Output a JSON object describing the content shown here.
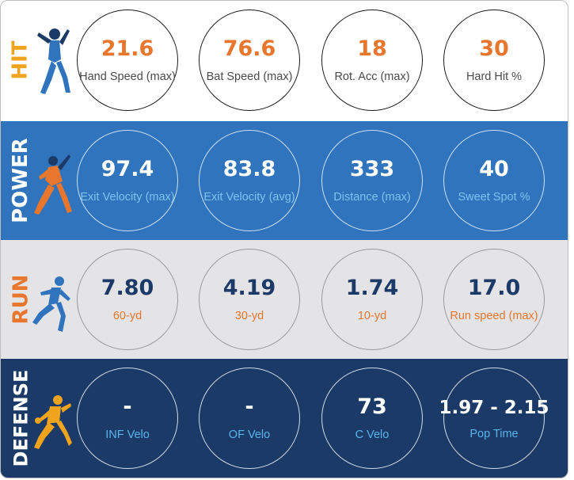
{
  "colors": {
    "orange": "#e8762d",
    "navy": "#1b3a67",
    "blue": "#2f74bd",
    "light_blue": "#5ab4ea",
    "gray": "#e4e4e6"
  },
  "sections": [
    {
      "key": "hit",
      "label": "HIT",
      "icon": "batter-icon",
      "label_color": "#f0a31c",
      "metrics": [
        {
          "value": "21.6",
          "label": "Hand Speed (max)"
        },
        {
          "value": "76.6",
          "label": "Bat Speed (max)"
        },
        {
          "value": "18",
          "label": "Rot. Acc (max)"
        },
        {
          "value": "30",
          "label": "Hard Hit %"
        }
      ]
    },
    {
      "key": "power",
      "label": "POWER",
      "icon": "power-hitter-icon",
      "label_color": "#ffffff",
      "metrics": [
        {
          "value": "97.4",
          "label": "Exit Velocity (max)"
        },
        {
          "value": "83.8",
          "label": "Exit Velocity (avg)"
        },
        {
          "value": "333",
          "label": "Distance (max)"
        },
        {
          "value": "40",
          "label": "Sweet Spot %"
        }
      ]
    },
    {
      "key": "run",
      "label": "RUN",
      "icon": "runner-icon",
      "label_color": "#e8762d",
      "metrics": [
        {
          "value": "7.80",
          "label": "60-yd"
        },
        {
          "value": "4.19",
          "label": "30-yd"
        },
        {
          "value": "1.74",
          "label": "10-yd"
        },
        {
          "value": "17.0",
          "label": "Run speed (max)"
        }
      ]
    },
    {
      "key": "defense",
      "label": "DEFENSE",
      "icon": "fielder-icon",
      "label_color": "#ffffff",
      "metrics": [
        {
          "value": "-",
          "label": "INF Velo"
        },
        {
          "value": "-",
          "label": "OF Velo"
        },
        {
          "value": "73",
          "label": "C Velo"
        },
        {
          "value": "1.97 - 2.15",
          "label": "Pop Time"
        }
      ]
    }
  ]
}
